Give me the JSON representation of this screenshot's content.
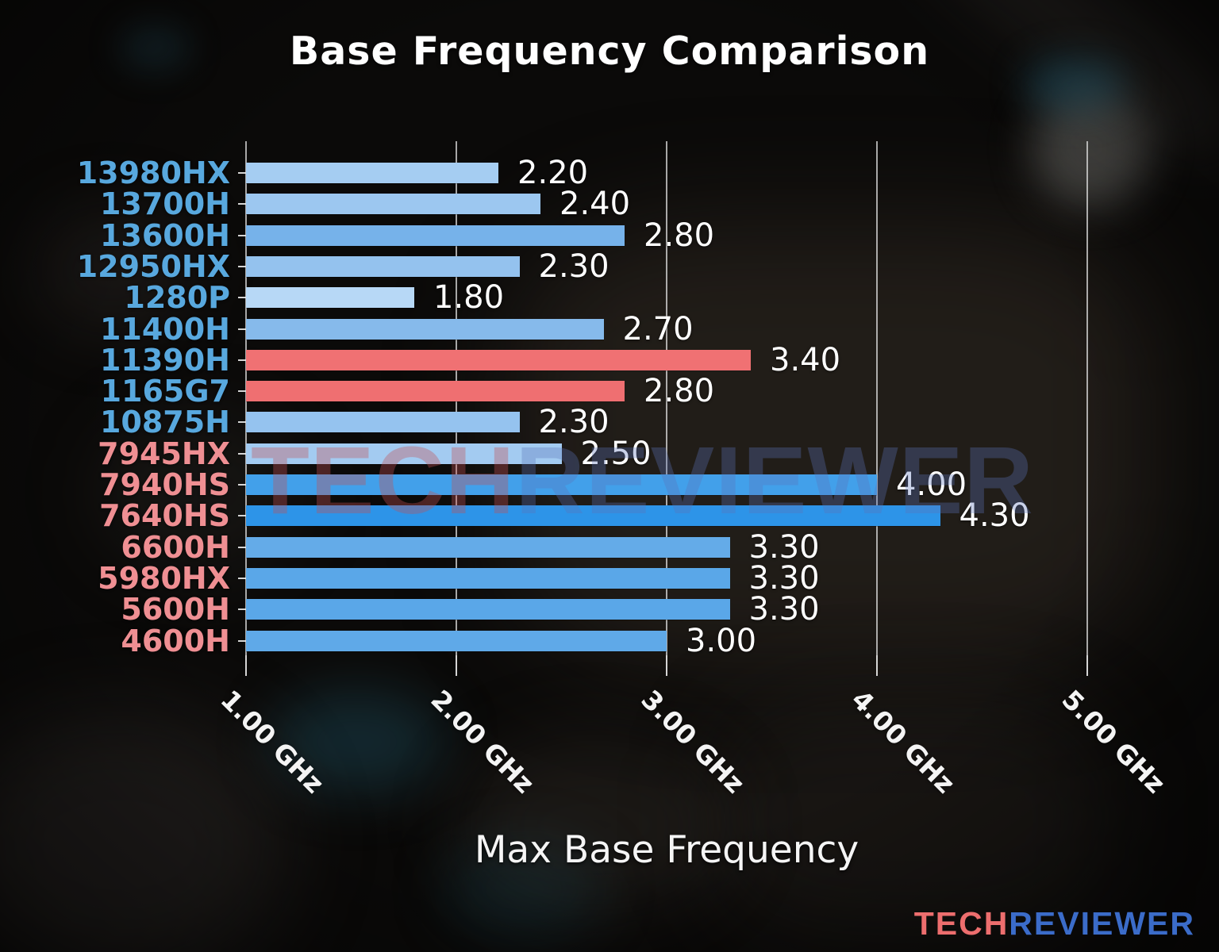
{
  "page": {
    "title": "Base Frequency Comparison",
    "xlabel": "Max Base Frequency"
  },
  "watermark": {
    "tech": "TECH",
    "reviewer": "REVIEWER"
  },
  "logo": {
    "tech": "TECH",
    "reviewer": "REVIEWER"
  },
  "colors": {
    "intel_label": "#58a8de",
    "amd_label": "#ef8f93",
    "value_text": "#ffffff",
    "gridline": "#e4e4e4",
    "red_bar": "#f07173",
    "strong_blue_bar": "#2d94e8",
    "light_blue_bar": "#a5cdf2",
    "logo_tech": "#ed6e6e",
    "logo_reviewer": "#3b6cc9"
  },
  "chart_data": {
    "type": "bar",
    "orientation": "horizontal",
    "title": "Base Frequency Comparison",
    "xlabel": "Max Base Frequency",
    "legend": null,
    "x_axis": {
      "unit": "GHz",
      "min": 1.0,
      "max": 5.3,
      "grid": true,
      "ticks": [
        {
          "value": 1.0,
          "label": "1.00 GHz"
        },
        {
          "value": 2.0,
          "label": "2.00 GHz"
        },
        {
          "value": 3.0,
          "label": "3.00 GHz"
        },
        {
          "value": 4.0,
          "label": "4.00 GHz"
        },
        {
          "value": 5.0,
          "label": "5.00 GHz"
        }
      ]
    },
    "bars": [
      {
        "category": "13980HX",
        "value": 2.2,
        "display": "2.20",
        "bar_color": "#a5cdf2",
        "label_color": "#58a8de"
      },
      {
        "category": "13700H",
        "value": 2.4,
        "display": "2.40",
        "bar_color": "#9cc7f0",
        "label_color": "#58a8de"
      },
      {
        "category": "13600H",
        "value": 2.8,
        "display": "2.80",
        "bar_color": "#76b2ea",
        "label_color": "#58a8de"
      },
      {
        "category": "12950HX",
        "value": 2.3,
        "display": "2.30",
        "bar_color": "#94c2ee",
        "label_color": "#58a8de"
      },
      {
        "category": "1280P",
        "value": 1.8,
        "display": "1.80",
        "bar_color": "#b7d8f6",
        "label_color": "#58a8de"
      },
      {
        "category": "11400H",
        "value": 2.7,
        "display": "2.70",
        "bar_color": "#86baeb",
        "label_color": "#58a8de"
      },
      {
        "category": "11390H",
        "value": 3.4,
        "display": "3.40",
        "bar_color": "#f07173",
        "label_color": "#58a8de"
      },
      {
        "category": "1165G7",
        "value": 2.8,
        "display": "2.80",
        "bar_color": "#ef6f71",
        "label_color": "#58a8de"
      },
      {
        "category": "10875H",
        "value": 2.3,
        "display": "2.30",
        "bar_color": "#95c3ef",
        "label_color": "#58a8de"
      },
      {
        "category": "7945HX",
        "value": 2.5,
        "display": "2.50",
        "bar_color": "#a3cbf1",
        "label_color": "#ef8f93"
      },
      {
        "category": "7940HS",
        "value": 4.0,
        "display": "4.00",
        "bar_color": "#42a0ea",
        "label_color": "#ef8f93"
      },
      {
        "category": "7640HS",
        "value": 4.3,
        "display": "4.30",
        "bar_color": "#2d94e8",
        "label_color": "#ef8f93"
      },
      {
        "category": "6600H",
        "value": 3.3,
        "display": "3.30",
        "bar_color": "#64abe8",
        "label_color": "#ef8f93"
      },
      {
        "category": "5980HX",
        "value": 3.3,
        "display": "3.30",
        "bar_color": "#5aa7e8",
        "label_color": "#ef8f93"
      },
      {
        "category": "5600H",
        "value": 3.3,
        "display": "3.30",
        "bar_color": "#5aa7e8",
        "label_color": "#ef8f93"
      },
      {
        "category": "4600H",
        "value": 3.0,
        "display": "3.00",
        "bar_color": "#5fa9e8",
        "label_color": "#ef8f93"
      }
    ]
  }
}
